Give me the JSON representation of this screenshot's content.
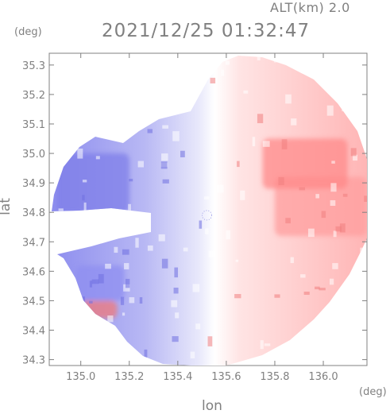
{
  "header": {
    "altitude_label": "ALT(km) 2.0",
    "timestamp": "2021/12/25 01:32:47"
  },
  "axes": {
    "y_unit": "(deg)",
    "x_unit": "(deg)",
    "y_label": "lat",
    "x_label": "lon"
  },
  "chart_data": {
    "type": "heatmap",
    "title": "2021/12/25 01:32:47",
    "subtitle": "ALT(km) 2.0",
    "xlabel": "lon",
    "ylabel": "lat",
    "x_unit": "(deg)",
    "y_unit": "(deg)",
    "xlim": [
      134.87,
      136.18
    ],
    "ylim": [
      34.28,
      35.34
    ],
    "x_ticks": [
      135.0,
      135.2,
      135.4,
      135.6,
      135.8,
      136.0
    ],
    "x_tick_labels": [
      "135.0",
      "135.2",
      "135.4",
      "135.6",
      "135.8",
      "136.0"
    ],
    "y_ticks": [
      34.3,
      34.4,
      34.5,
      34.6,
      34.7,
      34.8,
      34.9,
      35.0,
      35.1,
      35.2,
      35.3
    ],
    "y_tick_labels": [
      "34.3",
      "34.4",
      "34.5",
      "34.6",
      "34.7",
      "34.8",
      "34.9",
      "35.0",
      "35.1",
      "35.2",
      "35.3"
    ],
    "radar_center": {
      "lon": 135.52,
      "lat": 34.79
    },
    "colors": {
      "approaching": "#7b7bea",
      "receding": "#ff9999",
      "neutral": "#ffffff",
      "axis": "#808080"
    },
    "regions": [
      {
        "name": "west-blue-band",
        "lon": [
          134.9,
          135.2
        ],
        "lat": [
          34.8,
          35.0
        ],
        "color": "#7f7fe8"
      },
      {
        "name": "southwest-blue",
        "lon": [
          134.98,
          135.18
        ],
        "lat": [
          34.5,
          34.62
        ],
        "color": "#8f8ff0"
      },
      {
        "name": "southwest-red-echo",
        "lon": [
          135.0,
          135.15
        ],
        "lat": [
          34.44,
          34.5
        ],
        "color": "#f07a7a"
      },
      {
        "name": "east-red-band",
        "lon": [
          135.8,
          136.18
        ],
        "lat": [
          34.72,
          34.92
        ],
        "color": "#ff9d9d"
      },
      {
        "name": "northeast-mixed-cells",
        "lon": [
          135.75,
          136.1
        ],
        "lat": [
          34.88,
          35.05
        ],
        "color": "#ff8a8a"
      }
    ]
  }
}
